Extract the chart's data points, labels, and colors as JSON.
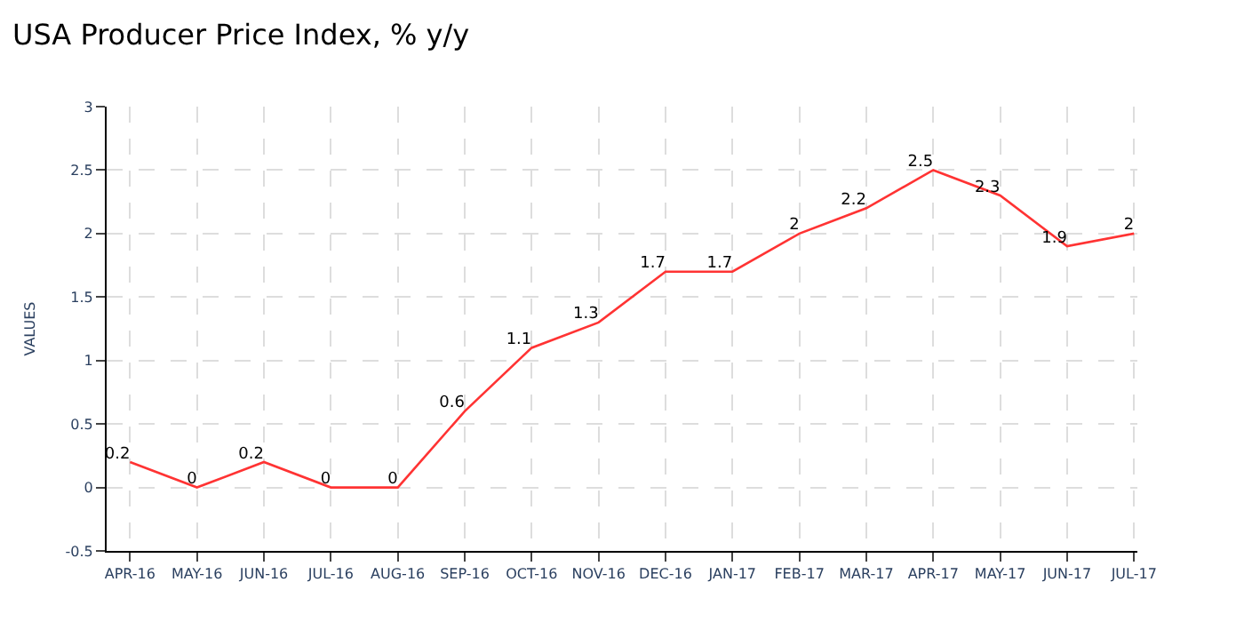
{
  "chart_data": {
    "type": "line",
    "title": "USA Producer Price Index, % y/y",
    "ylabel": "VALUES",
    "categories": [
      "APR-16",
      "MAY-16",
      "JUN-16",
      "JUL-16",
      "AUG-16",
      "SEP-16",
      "OCT-16",
      "NOV-16",
      "DEC-16",
      "JAN-17",
      "FEB-17",
      "MAR-17",
      "APR-17",
      "MAY-17",
      "JUN-17",
      "JUL-17"
    ],
    "series": [
      {
        "color": "#ff3333",
        "values": [
          0.2,
          0,
          0.2,
          0,
          0,
          0.6,
          1.1,
          1.3,
          1.7,
          1.7,
          2,
          2.2,
          2.5,
          2.3,
          1.9,
          2
        ]
      }
    ],
    "ylim": [
      -0.5,
      3
    ],
    "yticks": [
      -0.5,
      0,
      0.5,
      1,
      1.5,
      2,
      2.5,
      3
    ],
    "grid": true,
    "data_labels": true,
    "legend": false,
    "marker": "none",
    "line_style": "solid"
  }
}
